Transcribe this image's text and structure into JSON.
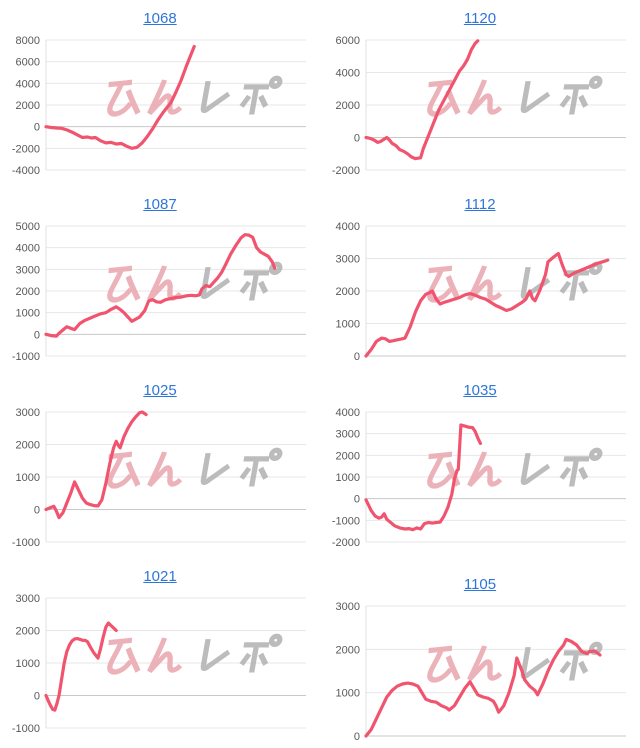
{
  "page": {
    "background": "#ffffff"
  },
  "style": {
    "line_color": "#f1546e",
    "grid_color": "#e7e7e7",
    "zero_line_color": "#c8c8c8",
    "axis_line_color": "#e0e0e0",
    "label_color": "#595959",
    "title_link_color": "#2e76d9",
    "watermark_pink": "#ebaab2",
    "watermark_gray": "#b5b5b5"
  },
  "watermark": {
    "text": "みんレポ",
    "text_pink": "みん",
    "text_gray": "レポ"
  },
  "chart_data": [
    {
      "type": "line",
      "title": "1068",
      "xlabel": "",
      "ylabel": "",
      "ylim": [
        -4000,
        8000
      ],
      "ytick_step": 2000,
      "ytick_labels": [
        "8000",
        "6000",
        "4000",
        "2000",
        "0",
        "-2000",
        "-4000"
      ],
      "points": [
        [
          0,
          0
        ],
        [
          0.02,
          -80
        ],
        [
          0.04,
          -120
        ],
        [
          0.06,
          -150
        ],
        [
          0.08,
          -300
        ],
        [
          0.1,
          -500
        ],
        [
          0.12,
          -750
        ],
        [
          0.14,
          -1000
        ],
        [
          0.16,
          -950
        ],
        [
          0.175,
          -1050
        ],
        [
          0.19,
          -1000
        ],
        [
          0.21,
          -1300
        ],
        [
          0.23,
          -1500
        ],
        [
          0.25,
          -1450
        ],
        [
          0.27,
          -1600
        ],
        [
          0.29,
          -1550
        ],
        [
          0.31,
          -1800
        ],
        [
          0.33,
          -2000
        ],
        [
          0.35,
          -1900
        ],
        [
          0.37,
          -1500
        ],
        [
          0.39,
          -900
        ],
        [
          0.41,
          -200
        ],
        [
          0.43,
          600
        ],
        [
          0.45,
          1300
        ],
        [
          0.46,
          1600
        ],
        [
          0.48,
          2200
        ],
        [
          0.5,
          3200
        ],
        [
          0.52,
          4300
        ],
        [
          0.54,
          5600
        ],
        [
          0.56,
          6800
        ],
        [
          0.57,
          7400
        ]
      ]
    },
    {
      "type": "line",
      "title": "1120",
      "xlabel": "",
      "ylabel": "",
      "ylim": [
        -2000,
        6000
      ],
      "ytick_step": 2000,
      "ytick_labels": [
        "6000",
        "4000",
        "2000",
        "0",
        "-2000"
      ],
      "points": [
        [
          0,
          0
        ],
        [
          0.015,
          -50
        ],
        [
          0.03,
          -150
        ],
        [
          0.045,
          -300
        ],
        [
          0.055,
          -250
        ],
        [
          0.07,
          -100
        ],
        [
          0.08,
          0
        ],
        [
          0.09,
          -150
        ],
        [
          0.1,
          -350
        ],
        [
          0.115,
          -500
        ],
        [
          0.13,
          -750
        ],
        [
          0.145,
          -850
        ],
        [
          0.16,
          -1000
        ],
        [
          0.175,
          -1200
        ],
        [
          0.19,
          -1300
        ],
        [
          0.21,
          -1250
        ],
        [
          0.22,
          -700
        ],
        [
          0.24,
          100
        ],
        [
          0.26,
          900
        ],
        [
          0.28,
          1700
        ],
        [
          0.3,
          2300
        ],
        [
          0.32,
          2900
        ],
        [
          0.34,
          3500
        ],
        [
          0.36,
          4100
        ],
        [
          0.375,
          4400
        ],
        [
          0.39,
          4800
        ],
        [
          0.405,
          5400
        ],
        [
          0.42,
          5800
        ],
        [
          0.43,
          5950
        ]
      ]
    },
    {
      "type": "line",
      "title": "1087",
      "xlabel": "",
      "ylabel": "",
      "ylim": [
        -1000,
        5000
      ],
      "ytick_step": 1000,
      "ytick_labels": [
        "5000",
        "4000",
        "3000",
        "2000",
        "1000",
        "0",
        "-1000"
      ],
      "points": [
        [
          0,
          0
        ],
        [
          0.02,
          -60
        ],
        [
          0.04,
          -80
        ],
        [
          0.05,
          50
        ],
        [
          0.07,
          250
        ],
        [
          0.08,
          350
        ],
        [
          0.095,
          280
        ],
        [
          0.11,
          220
        ],
        [
          0.13,
          500
        ],
        [
          0.15,
          650
        ],
        [
          0.17,
          750
        ],
        [
          0.19,
          850
        ],
        [
          0.21,
          950
        ],
        [
          0.23,
          1000
        ],
        [
          0.25,
          1150
        ],
        [
          0.27,
          1270
        ],
        [
          0.285,
          1150
        ],
        [
          0.3,
          1000
        ],
        [
          0.315,
          800
        ],
        [
          0.33,
          600
        ],
        [
          0.345,
          700
        ],
        [
          0.36,
          800
        ],
        [
          0.38,
          1100
        ],
        [
          0.395,
          1550
        ],
        [
          0.41,
          1600
        ],
        [
          0.425,
          1500
        ],
        [
          0.44,
          1480
        ],
        [
          0.46,
          1600
        ],
        [
          0.48,
          1650
        ],
        [
          0.5,
          1700
        ],
        [
          0.52,
          1720
        ],
        [
          0.54,
          1780
        ],
        [
          0.56,
          1800
        ],
        [
          0.575,
          1780
        ],
        [
          0.59,
          1820
        ],
        [
          0.6,
          2100
        ],
        [
          0.615,
          2250
        ],
        [
          0.63,
          2200
        ],
        [
          0.645,
          2400
        ],
        [
          0.66,
          2600
        ],
        [
          0.675,
          2850
        ],
        [
          0.69,
          3200
        ],
        [
          0.71,
          3700
        ],
        [
          0.73,
          4100
        ],
        [
          0.75,
          4450
        ],
        [
          0.765,
          4600
        ],
        [
          0.78,
          4580
        ],
        [
          0.795,
          4480
        ],
        [
          0.81,
          4000
        ],
        [
          0.825,
          3800
        ],
        [
          0.84,
          3700
        ],
        [
          0.855,
          3600
        ],
        [
          0.87,
          3350
        ],
        [
          0.88,
          3050
        ]
      ]
    },
    {
      "type": "line",
      "title": "1112",
      "xlabel": "",
      "ylabel": "",
      "ylim": [
        0,
        4000
      ],
      "ytick_step": 1000,
      "ytick_labels": [
        "4000",
        "3000",
        "2000",
        "1000",
        "0"
      ],
      "points": [
        [
          0,
          0
        ],
        [
          0.02,
          200
        ],
        [
          0.04,
          450
        ],
        [
          0.06,
          550
        ],
        [
          0.075,
          530
        ],
        [
          0.09,
          450
        ],
        [
          0.105,
          470
        ],
        [
          0.12,
          500
        ],
        [
          0.135,
          520
        ],
        [
          0.15,
          550
        ],
        [
          0.17,
          900
        ],
        [
          0.19,
          1350
        ],
        [
          0.21,
          1700
        ],
        [
          0.23,
          1900
        ],
        [
          0.245,
          1950
        ],
        [
          0.255,
          2000
        ],
        [
          0.27,
          1750
        ],
        [
          0.285,
          1600
        ],
        [
          0.3,
          1650
        ],
        [
          0.32,
          1700
        ],
        [
          0.34,
          1750
        ],
        [
          0.36,
          1800
        ],
        [
          0.38,
          1880
        ],
        [
          0.4,
          1920
        ],
        [
          0.42,
          1870
        ],
        [
          0.44,
          1800
        ],
        [
          0.46,
          1750
        ],
        [
          0.48,
          1650
        ],
        [
          0.5,
          1550
        ],
        [
          0.52,
          1480
        ],
        [
          0.54,
          1400
        ],
        [
          0.56,
          1450
        ],
        [
          0.58,
          1550
        ],
        [
          0.6,
          1650
        ],
        [
          0.615,
          1750
        ],
        [
          0.63,
          2000
        ],
        [
          0.64,
          1780
        ],
        [
          0.65,
          1700
        ],
        [
          0.67,
          2050
        ],
        [
          0.69,
          2500
        ],
        [
          0.7,
          2900
        ],
        [
          0.715,
          3000
        ],
        [
          0.73,
          3100
        ],
        [
          0.74,
          3150
        ],
        [
          0.755,
          2800
        ],
        [
          0.77,
          2500
        ],
        [
          0.78,
          2450
        ],
        [
          0.8,
          2550
        ],
        [
          0.83,
          2650
        ],
        [
          0.86,
          2750
        ],
        [
          0.89,
          2850
        ],
        [
          0.91,
          2900
        ],
        [
          0.93,
          2950
        ]
      ]
    },
    {
      "type": "line",
      "title": "1025",
      "xlabel": "",
      "ylabel": "",
      "ylim": [
        -1000,
        3000
      ],
      "ytick_step": 1000,
      "ytick_labels": [
        "3000",
        "2000",
        "1000",
        "0",
        "-1000"
      ],
      "points": [
        [
          0,
          0
        ],
        [
          0.015,
          50
        ],
        [
          0.03,
          100
        ],
        [
          0.04,
          -50
        ],
        [
          0.05,
          -250
        ],
        [
          0.065,
          -100
        ],
        [
          0.08,
          200
        ],
        [
          0.095,
          500
        ],
        [
          0.11,
          850
        ],
        [
          0.125,
          600
        ],
        [
          0.14,
          350
        ],
        [
          0.155,
          200
        ],
        [
          0.17,
          150
        ],
        [
          0.185,
          120
        ],
        [
          0.2,
          110
        ],
        [
          0.215,
          300
        ],
        [
          0.23,
          800
        ],
        [
          0.245,
          1400
        ],
        [
          0.26,
          1900
        ],
        [
          0.27,
          2100
        ],
        [
          0.28,
          1950
        ],
        [
          0.285,
          1900
        ],
        [
          0.3,
          2250
        ],
        [
          0.315,
          2500
        ],
        [
          0.33,
          2700
        ],
        [
          0.345,
          2850
        ],
        [
          0.36,
          2980
        ],
        [
          0.37,
          3000
        ],
        [
          0.385,
          2920
        ]
      ]
    },
    {
      "type": "line",
      "title": "1035",
      "xlabel": "",
      "ylabel": "",
      "ylim": [
        -2000,
        4000
      ],
      "ytick_step": 1000,
      "ytick_labels": [
        "4000",
        "3000",
        "2000",
        "1000",
        "0",
        "-1000",
        "-2000"
      ],
      "points": [
        [
          0,
          -50
        ],
        [
          0.01,
          -300
        ],
        [
          0.02,
          -550
        ],
        [
          0.035,
          -800
        ],
        [
          0.05,
          -900
        ],
        [
          0.06,
          -850
        ],
        [
          0.07,
          -700
        ],
        [
          0.08,
          -950
        ],
        [
          0.095,
          -1100
        ],
        [
          0.11,
          -1250
        ],
        [
          0.13,
          -1350
        ],
        [
          0.15,
          -1400
        ],
        [
          0.165,
          -1380
        ],
        [
          0.18,
          -1430
        ],
        [
          0.195,
          -1350
        ],
        [
          0.21,
          -1400
        ],
        [
          0.225,
          -1150
        ],
        [
          0.24,
          -1100
        ],
        [
          0.255,
          -1130
        ],
        [
          0.27,
          -1100
        ],
        [
          0.285,
          -1080
        ],
        [
          0.3,
          -800
        ],
        [
          0.315,
          -400
        ],
        [
          0.33,
          200
        ],
        [
          0.34,
          900
        ],
        [
          0.35,
          1300
        ],
        [
          0.355,
          1350
        ],
        [
          0.365,
          3400
        ],
        [
          0.38,
          3350
        ],
        [
          0.395,
          3300
        ],
        [
          0.41,
          3280
        ],
        [
          0.42,
          3100
        ],
        [
          0.43,
          2800
        ],
        [
          0.44,
          2550
        ]
      ]
    },
    {
      "type": "line",
      "title": "1021",
      "xlabel": "",
      "ylabel": "",
      "ylim": [
        -1000,
        3000
      ],
      "ytick_step": 1000,
      "ytick_labels": [
        "3000",
        "2000",
        "1000",
        "0",
        "-1000"
      ],
      "points": [
        [
          0,
          0
        ],
        [
          0.008,
          -150
        ],
        [
          0.017,
          -300
        ],
        [
          0.026,
          -430
        ],
        [
          0.034,
          -450
        ],
        [
          0.042,
          -250
        ],
        [
          0.05,
          0
        ],
        [
          0.06,
          500
        ],
        [
          0.07,
          1000
        ],
        [
          0.08,
          1350
        ],
        [
          0.09,
          1550
        ],
        [
          0.1,
          1680
        ],
        [
          0.11,
          1740
        ],
        [
          0.12,
          1750
        ],
        [
          0.13,
          1730
        ],
        [
          0.14,
          1700
        ],
        [
          0.15,
          1700
        ],
        [
          0.16,
          1650
        ],
        [
          0.17,
          1500
        ],
        [
          0.185,
          1300
        ],
        [
          0.2,
          1150
        ],
        [
          0.21,
          1450
        ],
        [
          0.22,
          1800
        ],
        [
          0.23,
          2100
        ],
        [
          0.24,
          2230
        ],
        [
          0.25,
          2150
        ],
        [
          0.26,
          2080
        ],
        [
          0.27,
          2000
        ]
      ]
    },
    {
      "type": "line",
      "title": "1105",
      "xlabel": "",
      "ylabel": "",
      "ylim": [
        0,
        3000
      ],
      "ytick_step": 1000,
      "ytick_labels": [
        "3000",
        "2000",
        "1000",
        "0"
      ],
      "points": [
        [
          0,
          0
        ],
        [
          0.02,
          150
        ],
        [
          0.04,
          400
        ],
        [
          0.06,
          650
        ],
        [
          0.08,
          900
        ],
        [
          0.1,
          1050
        ],
        [
          0.12,
          1150
        ],
        [
          0.14,
          1200
        ],
        [
          0.16,
          1220
        ],
        [
          0.18,
          1200
        ],
        [
          0.2,
          1150
        ],
        [
          0.21,
          1050
        ],
        [
          0.23,
          850
        ],
        [
          0.25,
          800
        ],
        [
          0.27,
          780
        ],
        [
          0.29,
          700
        ],
        [
          0.31,
          650
        ],
        [
          0.32,
          600
        ],
        [
          0.34,
          700
        ],
        [
          0.36,
          900
        ],
        [
          0.38,
          1100
        ],
        [
          0.4,
          1250
        ],
        [
          0.42,
          1050
        ],
        [
          0.43,
          950
        ],
        [
          0.45,
          900
        ],
        [
          0.47,
          870
        ],
        [
          0.49,
          800
        ],
        [
          0.5,
          700
        ],
        [
          0.51,
          550
        ],
        [
          0.53,
          700
        ],
        [
          0.55,
          1000
        ],
        [
          0.57,
          1400
        ],
        [
          0.58,
          1800
        ],
        [
          0.6,
          1500
        ],
        [
          0.61,
          1300
        ],
        [
          0.63,
          1150
        ],
        [
          0.65,
          1050
        ],
        [
          0.66,
          950
        ],
        [
          0.68,
          1200
        ],
        [
          0.7,
          1500
        ],
        [
          0.72,
          1750
        ],
        [
          0.74,
          1950
        ],
        [
          0.76,
          2100
        ],
        [
          0.77,
          2230
        ],
        [
          0.79,
          2180
        ],
        [
          0.81,
          2100
        ],
        [
          0.83,
          1950
        ],
        [
          0.85,
          1900
        ],
        [
          0.86,
          1950
        ],
        [
          0.88,
          1960
        ],
        [
          0.9,
          1870
        ]
      ]
    }
  ]
}
